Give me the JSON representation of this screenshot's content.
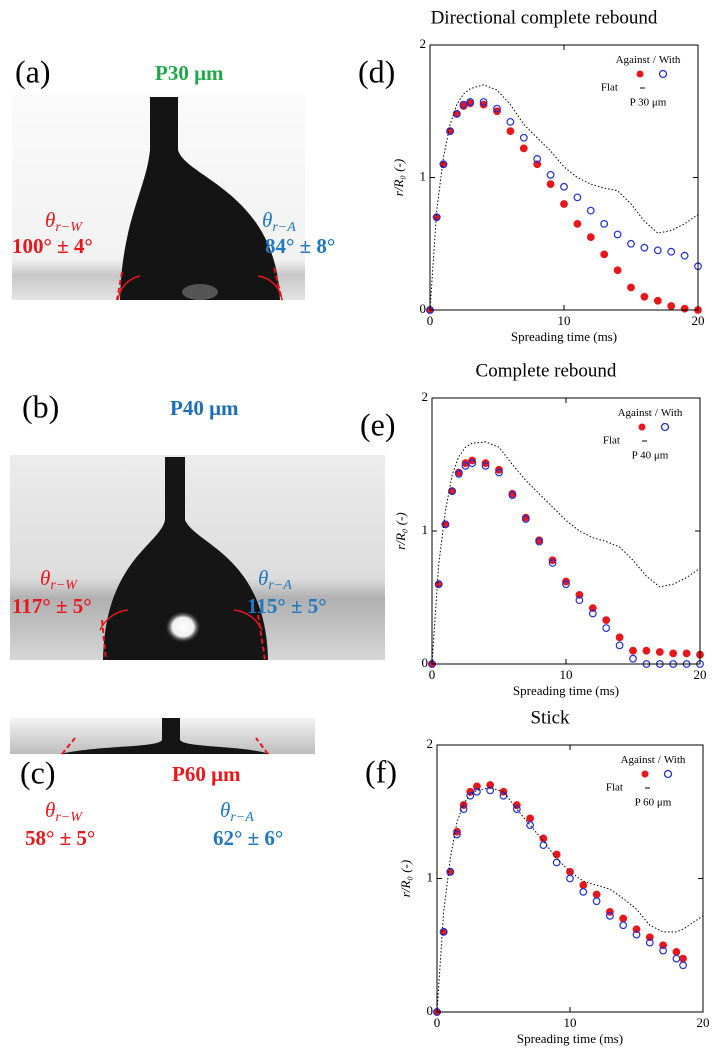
{
  "panels": [
    {
      "letter": "(a)",
      "title": "P30 μm",
      "title_color": "#22a84a",
      "left_symbol": "θ",
      "left_sub": "r−W",
      "left_value": "100° ± 4°",
      "right_symbol": "θ",
      "right_sub": "r−A",
      "right_value": "84° ± 8°"
    },
    {
      "letter": "(b)",
      "title": "P40 μm",
      "title_color": "#1f6fb5",
      "left_symbol": "θ",
      "left_sub": "r−W",
      "left_value": "117° ± 5°",
      "right_symbol": "θ",
      "right_sub": "r−A",
      "right_value": "115° ± 5°"
    },
    {
      "letter": "(c)",
      "title": "P60 μm",
      "title_color": "#e8171b",
      "left_symbol": "θ",
      "left_sub": "r−W",
      "left_value": "58° ± 5°",
      "right_symbol": "θ",
      "right_sub": "r−A",
      "right_value": "62° ± 6°"
    }
  ],
  "chart_data": [
    {
      "type": "scatter",
      "panel_label": "(d)",
      "title": "Directional complete rebound",
      "x_label": "Spreading time (ms)",
      "y_label": "r/R₀ (-)",
      "annotation": "P 30 μm",
      "legend_separator": "/",
      "legend": "upper right",
      "grid": false,
      "xlim": [
        0,
        20
      ],
      "ylim": [
        0,
        2
      ],
      "xticks": [
        0,
        10,
        20
      ],
      "yticks": [
        0,
        1,
        2
      ],
      "x": [
        0,
        0.5,
        1,
        1.5,
        2,
        2.5,
        3,
        4,
        5,
        6,
        7,
        8,
        9,
        10,
        11,
        12,
        13,
        14,
        15,
        16,
        17,
        18,
        19,
        20
      ],
      "series": [
        {
          "name": "Against",
          "color": "#e8171b",
          "marker": "filled",
          "values": [
            0,
            0.7,
            1.1,
            1.35,
            1.48,
            1.54,
            1.56,
            1.55,
            1.5,
            1.35,
            1.22,
            1.1,
            0.95,
            0.8,
            0.65,
            0.55,
            0.42,
            0.3,
            0.17,
            0.1,
            0.07,
            0.03,
            0.01,
            0
          ]
        },
        {
          "name": "With",
          "color": "#1f2fd6",
          "marker": "open",
          "values": [
            0,
            0.7,
            1.1,
            1.35,
            1.48,
            1.55,
            1.57,
            1.57,
            1.52,
            1.42,
            1.3,
            1.14,
            1.02,
            0.93,
            0.85,
            0.75,
            0.65,
            0.57,
            0.5,
            0.47,
            0.45,
            0.44,
            0.41,
            0.33
          ]
        },
        {
          "name": "Flat",
          "color": "#000000",
          "marker": "dotted-line",
          "values": [
            0,
            0.75,
            1.15,
            1.4,
            1.55,
            1.63,
            1.67,
            1.7,
            1.66,
            1.55,
            1.4,
            1.3,
            1.2,
            1.08,
            1.0,
            0.95,
            0.92,
            0.9,
            0.8,
            0.67,
            0.58,
            0.6,
            0.65,
            0.72
          ]
        }
      ]
    },
    {
      "type": "scatter",
      "panel_label": "(e)",
      "title": "Complete rebound",
      "x_label": "Spreading time (ms)",
      "y_label": "r/R₀ (-)",
      "annotation": "P 40 μm",
      "legend_separator": "/",
      "legend": "upper right",
      "grid": false,
      "xlim": [
        0,
        20
      ],
      "ylim": [
        0,
        2
      ],
      "xticks": [
        0,
        10,
        20
      ],
      "yticks": [
        0,
        1,
        2
      ],
      "x": [
        0,
        0.5,
        1,
        1.5,
        2,
        2.5,
        3,
        4,
        5,
        6,
        7,
        8,
        9,
        10,
        11,
        12,
        13,
        14,
        15,
        16,
        17,
        18,
        19,
        20
      ],
      "series": [
        {
          "name": "Against",
          "color": "#e8171b",
          "marker": "filled",
          "values": [
            0,
            0.6,
            1.05,
            1.3,
            1.44,
            1.51,
            1.53,
            1.51,
            1.46,
            1.28,
            1.1,
            0.93,
            0.78,
            0.62,
            0.52,
            0.42,
            0.33,
            0.2,
            0.1,
            0.1,
            0.09,
            0.08,
            0.08,
            0.07
          ]
        },
        {
          "name": "With",
          "color": "#1f2fd6",
          "marker": "open",
          "values": [
            0,
            0.6,
            1.05,
            1.3,
            1.43,
            1.49,
            1.51,
            1.49,
            1.44,
            1.27,
            1.09,
            0.92,
            0.76,
            0.6,
            0.48,
            0.38,
            0.27,
            0.14,
            0.04,
            0,
            0,
            0,
            0,
            0
          ]
        },
        {
          "name": "Flat",
          "color": "#000000",
          "marker": "dotted-line",
          "values": [
            0,
            0.75,
            1.15,
            1.42,
            1.56,
            1.63,
            1.66,
            1.67,
            1.63,
            1.5,
            1.38,
            1.28,
            1.18,
            1.08,
            1.0,
            0.95,
            0.92,
            0.88,
            0.78,
            0.66,
            0.58,
            0.6,
            0.65,
            0.72
          ]
        }
      ]
    },
    {
      "type": "scatter",
      "panel_label": "(f)",
      "title": "Stick",
      "x_label": "Spreading time (ms)",
      "y_label": "r/R₀ (-)",
      "annotation": "P 60 μm",
      "legend_separator": "/",
      "legend": "upper right",
      "grid": false,
      "xlim": [
        0,
        20
      ],
      "ylim": [
        0,
        2
      ],
      "xticks": [
        0,
        10,
        20
      ],
      "yticks": [
        0,
        1,
        2
      ],
      "x": [
        0,
        0.5,
        1,
        1.5,
        2,
        2.5,
        3,
        4,
        5,
        6,
        7,
        8,
        9,
        10,
        11,
        12,
        13,
        14,
        15,
        16,
        17,
        18,
        18.5,
        20
      ],
      "series": [
        {
          "name": "Against",
          "color": "#e8171b",
          "marker": "filled",
          "values": [
            0,
            0.6,
            1.05,
            1.35,
            1.55,
            1.65,
            1.69,
            1.7,
            1.65,
            1.55,
            1.45,
            1.3,
            1.18,
            1.05,
            0.95,
            0.88,
            0.75,
            0.7,
            0.62,
            0.56,
            0.5,
            0.45,
            0.4,
            null
          ]
        },
        {
          "name": "With",
          "color": "#1f2fd6",
          "marker": "open",
          "values": [
            0,
            0.6,
            1.05,
            1.33,
            1.52,
            1.62,
            1.65,
            1.66,
            1.62,
            1.52,
            1.4,
            1.25,
            1.12,
            1.0,
            0.9,
            0.83,
            0.72,
            0.65,
            0.58,
            0.52,
            0.46,
            0.4,
            0.35,
            null
          ]
        },
        {
          "name": "Flat",
          "color": "#000000",
          "marker": "dotted-line",
          "values": [
            0,
            0.75,
            1.15,
            1.42,
            1.56,
            1.63,
            1.66,
            1.68,
            1.65,
            1.52,
            1.4,
            1.28,
            1.15,
            1.05,
            0.98,
            0.95,
            0.92,
            0.85,
            0.77,
            0.65,
            0.6,
            0.6,
            0.62,
            0.72
          ]
        }
      ]
    }
  ]
}
